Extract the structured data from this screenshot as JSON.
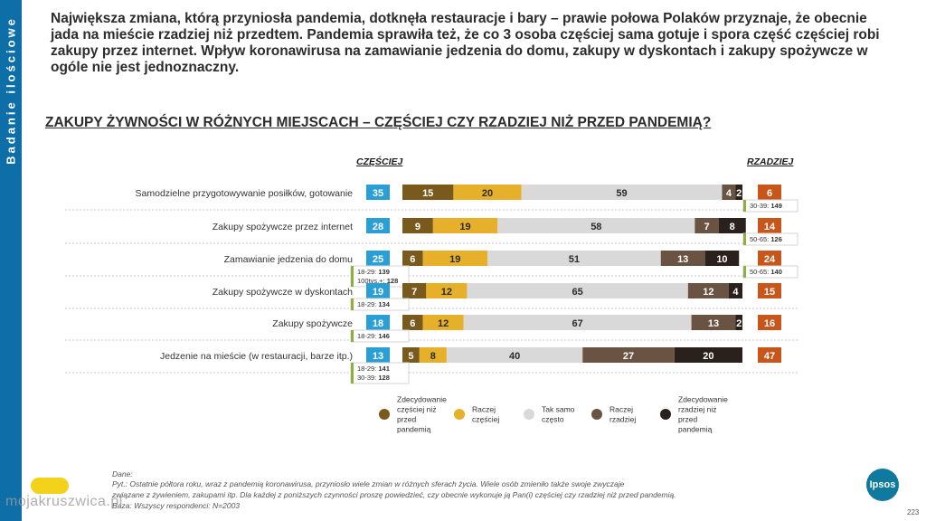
{
  "side_label": "Badanie ilościowe",
  "intro": "Największa zmiana, którą przyniosła pandemia, dotknęła restauracje i bary – prawie połowa Polaków przyznaje, że obecnie jada na mieście rzadziej niż przedtem. Pandemia sprawiła też, że co 3 osoba częściej sama gotuje i spora część częściej robi zakupy przez internet. Wpływ koronawirusa na zamawianie jedzenia do domu, zakupy w dyskontach i zakupy spożywcze w ogóle nie jest jednoznaczny.",
  "section_title": "ZAKUPY ŻYWNOŚCI W RÓŻNYCH MIEJSCACH – CZĘŚCIEJ CZY RZADZIEJ NIŻ PRZED PANDEMIĄ?",
  "footnote": {
    "line1": "Dane:",
    "line2": "Pyt.: Ostatnie półtora roku, wraz z pandemią koronawirusa, przyniosło wiele zmian w różnych sferach życia. Wiele osób zmieniło także swoje zwyczaje",
    "line3": "związane z żywieniem, zakupami itp. Dla każdej z poniższych czynności proszę powiedzieć, czy obecnie wykonuje ją Pan(i) częściej czy rzadziej niż przed pandemią.",
    "line4": "Baza: Wszyscy respondenci: N=2003"
  },
  "logo": "Ipsos",
  "page_number": "223",
  "watermark": "mojakruszwica.pl",
  "colors": {
    "side_tab": "#0e6fa8",
    "czesciej_box": "#2a9fd6",
    "rzadziej_box": "#c8561a",
    "seg1": "#7a5a1c",
    "seg2": "#e6b02a",
    "seg3": "#d9d9d9",
    "seg4": "#6b5343",
    "seg5": "#2a211c",
    "sub_bar": "#8fae3c"
  },
  "chart_data": {
    "type": "bar",
    "stacked": true,
    "orientation": "horizontal",
    "column_left_header": "CZĘŚCIEJ",
    "column_right_header": "RZADZIEJ",
    "categories": [
      "Samodzielne przygotowywanie posiłków, gotowanie",
      "Zakupy spożywcze przez internet",
      "Zamawianie jedzenia do domu",
      "Zakupy spożywcze w dyskontach",
      "Zakupy spożywcze",
      "Jedzenie na mieście (w restauracji, barze itp.)"
    ],
    "series": [
      {
        "name": "Zdecydowanie częściej niż przed pandemią",
        "values": [
          15,
          9,
          6,
          7,
          6,
          5
        ]
      },
      {
        "name": "Raczej częściej",
        "values": [
          20,
          19,
          19,
          12,
          12,
          8
        ]
      },
      {
        "name": "Tak samo często",
        "values": [
          59,
          58,
          51,
          65,
          67,
          40
        ]
      },
      {
        "name": "Raczej rzadziej",
        "values": [
          4,
          7,
          13,
          12,
          13,
          27
        ]
      },
      {
        "name": "Zdecydowanie rzadziej niż przed pandemią",
        "values": [
          2,
          8,
          10,
          4,
          2,
          20
        ]
      }
    ],
    "czesciej_totals": [
      35,
      28,
      25,
      19,
      18,
      13
    ],
    "rzadziej_totals": [
      6,
      14,
      24,
      15,
      16,
      47
    ],
    "left_notes": [
      [],
      [],
      [
        {
          "label": "18-29:",
          "value": "139"
        },
        {
          "label": "100tys.+:",
          "value": "128"
        }
      ],
      [
        {
          "label": "18-29:",
          "value": "134"
        }
      ],
      [
        {
          "label": "18-29:",
          "value": "146"
        }
      ],
      [
        {
          "label": "18-29:",
          "value": "141"
        },
        {
          "label": "30-39:",
          "value": "128"
        }
      ]
    ],
    "right_notes": [
      [
        {
          "label": "30-39:",
          "value": "149"
        }
      ],
      [
        {
          "label": "50-65:",
          "value": "126"
        }
      ],
      [
        {
          "label": "50-65:",
          "value": "140"
        }
      ],
      [],
      [],
      []
    ],
    "legend_position": "bottom",
    "xlim": [
      0,
      100
    ]
  }
}
